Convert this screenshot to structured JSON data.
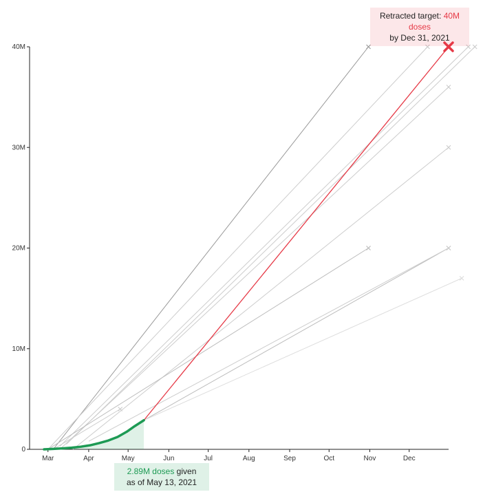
{
  "chart_data": {
    "type": "line",
    "title": "",
    "xlabel": "",
    "ylabel": "",
    "x_axis": {
      "ticks": [
        "Mar",
        "Apr",
        "May",
        "Jun",
        "Jul",
        "Aug",
        "Sep",
        "Oct",
        "Nov",
        "Dec"
      ],
      "range": [
        "2021-02-15",
        "2021-12-31"
      ]
    },
    "y_axis": {
      "ticks": [
        0,
        10000000,
        20000000,
        30000000,
        40000000
      ],
      "tick_labels": [
        "0",
        "10M",
        "20M",
        "30M",
        "40M"
      ],
      "range": [
        0,
        40000000
      ]
    },
    "grid": false,
    "series": [
      {
        "role": "doses-given",
        "color": "#1d9a54",
        "points": [
          {
            "x": "2021-02-26",
            "y": 0
          },
          {
            "x": "2021-03-05",
            "y": 40000
          },
          {
            "x": "2021-03-12",
            "y": 90000
          },
          {
            "x": "2021-03-19",
            "y": 160000
          },
          {
            "x": "2021-03-26",
            "y": 260000
          },
          {
            "x": "2021-04-02",
            "y": 400000
          },
          {
            "x": "2021-04-09",
            "y": 620000
          },
          {
            "x": "2021-04-16",
            "y": 880000
          },
          {
            "x": "2021-04-23",
            "y": 1230000
          },
          {
            "x": "2021-04-30",
            "y": 1750000
          },
          {
            "x": "2021-05-06",
            "y": 2300000
          },
          {
            "x": "2021-05-13",
            "y": 2890000
          }
        ]
      },
      {
        "role": "retracted-target-projection",
        "color": "#e63946",
        "points": [
          {
            "x": "2021-05-13",
            "y": 2890000
          },
          {
            "x": "2021-12-31",
            "y": 40000000
          }
        ]
      }
    ],
    "past_projections": [
      {
        "color": "#999999",
        "points": [
          {
            "x": "2021-03-05",
            "y": 0
          },
          {
            "x": "2021-10-31",
            "y": 40000000
          }
        ]
      },
      {
        "color": "#cccccc",
        "points": [
          {
            "x": "2021-03-01",
            "y": 0
          },
          {
            "x": "2021-12-15",
            "y": 40000000
          }
        ]
      },
      {
        "color": "#cccccc",
        "points": [
          {
            "x": "2021-03-10",
            "y": 300000
          },
          {
            "x": "2022-01-15",
            "y": 40000000
          }
        ]
      },
      {
        "color": "#cccccc",
        "points": [
          {
            "x": "2021-03-15",
            "y": 500000
          },
          {
            "x": "2022-01-20",
            "y": 40000000
          }
        ]
      },
      {
        "color": "#cccccc",
        "points": [
          {
            "x": "2021-03-10",
            "y": 0
          },
          {
            "x": "2021-12-31",
            "y": 36000000
          }
        ]
      },
      {
        "color": "#cccccc",
        "points": [
          {
            "x": "2021-03-20",
            "y": 0
          },
          {
            "x": "2021-12-31",
            "y": 30000000
          }
        ]
      },
      {
        "color": "#bbbbbb",
        "points": [
          {
            "x": "2021-03-01",
            "y": 0
          },
          {
            "x": "2021-10-31",
            "y": 20000000
          }
        ]
      },
      {
        "color": "#bbbbbb",
        "points": [
          {
            "x": "2021-05-13",
            "y": 2890000
          },
          {
            "x": "2021-12-31",
            "y": 20000000
          }
        ]
      },
      {
        "color": "#cccccc",
        "points": [
          {
            "x": "2021-04-01",
            "y": 800000
          },
          {
            "x": "2021-12-31",
            "y": 20000000
          }
        ]
      },
      {
        "color": "#dddddd",
        "points": [
          {
            "x": "2021-05-13",
            "y": 2890000
          },
          {
            "x": "2022-01-10",
            "y": 17000000
          }
        ]
      },
      {
        "color": "#cccccc",
        "points": [
          {
            "x": "2021-03-05",
            "y": 0
          },
          {
            "x": "2021-04-25",
            "y": 4000000
          }
        ]
      }
    ],
    "annotations": {
      "target": {
        "prefix": "Retracted target: ",
        "highlight": "40M doses",
        "line2": "by Dec 31, 2021",
        "x": "2021-12-31",
        "y": 40000000
      },
      "current": {
        "highlight": "2.89M doses",
        "suffix": " given",
        "line2": "as of May 13, 2021",
        "x": "2021-05-13",
        "y": 2890000
      }
    },
    "colors": {
      "target": "#e63946",
      "given": "#1d9a54",
      "axis": "#222222"
    }
  }
}
